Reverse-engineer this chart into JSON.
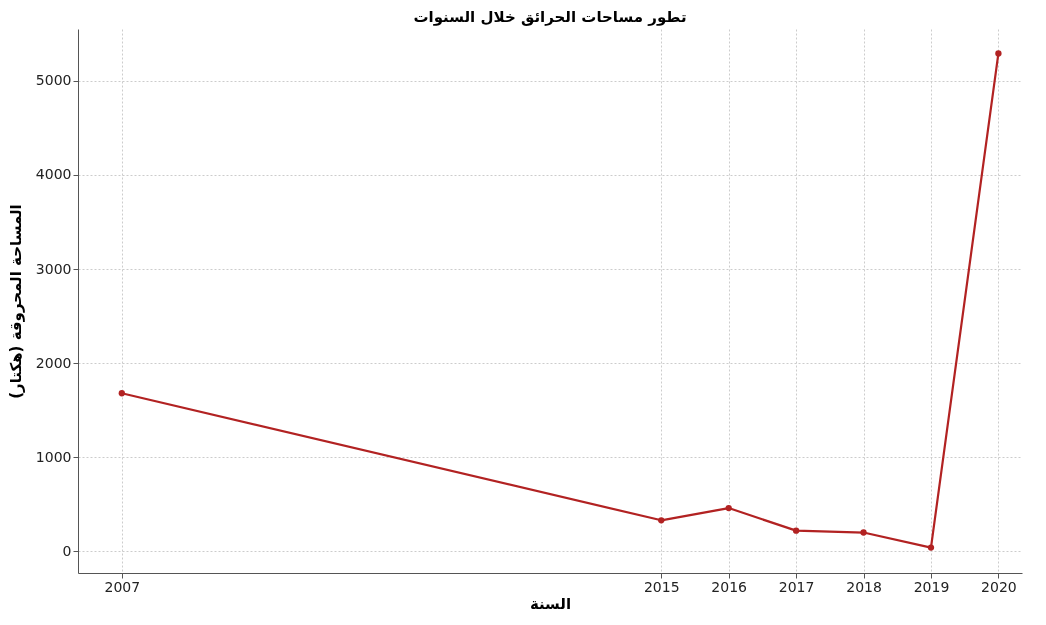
{
  "chart_data": {
    "type": "line",
    "title": "تطور مساحات الحرائق خلال السنوات",
    "xlabel": "السنة",
    "ylabel": "المساحة المحروقة (هكتار)",
    "x": [
      2007,
      2015,
      2016,
      2017,
      2018,
      2019,
      2020
    ],
    "series": [
      {
        "color": "#b22222",
        "values": [
          1680,
          330,
          460,
          220,
          200,
          40,
          5290
        ]
      }
    ],
    "xlim": [
      2006.35,
      2020.35
    ],
    "xticks": [
      2007,
      2015,
      2016,
      2017,
      2018,
      2019,
      2020
    ],
    "ylim": [
      -230,
      5550
    ],
    "yticks": [
      0,
      1000,
      2000,
      3000,
      4000,
      5000
    ],
    "grid": true,
    "marker": "circle",
    "line_style": "solid"
  }
}
